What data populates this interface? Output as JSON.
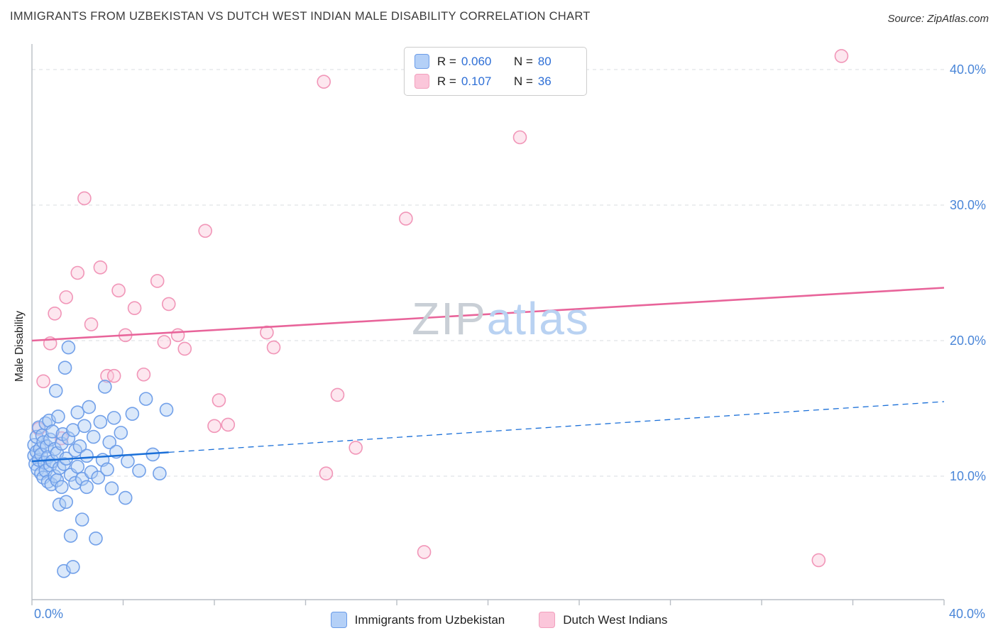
{
  "header": {
    "title": "IMMIGRANTS FROM UZBEKISTAN VS DUTCH WEST INDIAN MALE DISABILITY CORRELATION CHART",
    "source": "Source: ZipAtlas.com"
  },
  "watermark": {
    "zip": "ZIP",
    "atlas": "atlas"
  },
  "y_axis": {
    "label": "Male Disability",
    "ticks": [
      {
        "value": 10,
        "label": "10.0%"
      },
      {
        "value": 20,
        "label": "20.0%"
      },
      {
        "value": 30,
        "label": "30.0%"
      },
      {
        "value": 40,
        "label": "40.0%"
      }
    ]
  },
  "x_axis": {
    "min": 0,
    "max": 40,
    "min_label": "0.0%",
    "max_label": "40.0%"
  },
  "stats_legend": {
    "r_label": "R =",
    "n_label": "N =",
    "rows": [
      {
        "r": "0.060",
        "n": "80"
      },
      {
        "r": "0.107",
        "n": "36"
      }
    ]
  },
  "bottom_legend": {
    "items": [
      {
        "label": "Immigrants from Uzbekistan"
      },
      {
        "label": "Dutch West Indians"
      }
    ]
  },
  "chart_data": {
    "type": "scatter",
    "title": "IMMIGRANTS FROM UZBEKISTAN VS DUTCH WEST INDIAN MALE DISABILITY CORRELATION CHART",
    "xlabel": "",
    "ylabel": "Male Disability",
    "xlim": [
      0,
      40
    ],
    "ylim": [
      0,
      42
    ],
    "grid": true,
    "legend_position": "top-center",
    "series": [
      {
        "name": "Immigrants from Uzbekistan",
        "R": 0.06,
        "N": 80,
        "stroke": "#6b9ce8",
        "fill": "#aecbf5",
        "points": [
          [
            0.1,
            11.5
          ],
          [
            0.1,
            12.3
          ],
          [
            0.15,
            10.9
          ],
          [
            0.2,
            11.8
          ],
          [
            0.2,
            12.9
          ],
          [
            0.25,
            10.5
          ],
          [
            0.3,
            11.2
          ],
          [
            0.3,
            13.6
          ],
          [
            0.35,
            12.0
          ],
          [
            0.4,
            10.2
          ],
          [
            0.4,
            11.6
          ],
          [
            0.45,
            13.0
          ],
          [
            0.5,
            9.9
          ],
          [
            0.5,
            12.5
          ],
          [
            0.55,
            11.0
          ],
          [
            0.6,
            10.4
          ],
          [
            0.6,
            13.9
          ],
          [
            0.65,
            12.2
          ],
          [
            0.7,
            9.6
          ],
          [
            0.7,
            11.4
          ],
          [
            0.75,
            14.1
          ],
          [
            0.8,
            10.8
          ],
          [
            0.8,
            12.7
          ],
          [
            0.85,
            9.4
          ],
          [
            0.9,
            11.1
          ],
          [
            0.9,
            13.3
          ],
          [
            1.0,
            10.0
          ],
          [
            1.0,
            12.0
          ],
          [
            1.05,
            16.3
          ],
          [
            1.1,
            9.7
          ],
          [
            1.1,
            11.7
          ],
          [
            1.15,
            14.4
          ],
          [
            1.2,
            7.9
          ],
          [
            1.2,
            10.6
          ],
          [
            1.3,
            12.4
          ],
          [
            1.3,
            9.2
          ],
          [
            1.35,
            13.1
          ],
          [
            1.4,
            3.0
          ],
          [
            1.4,
            10.9
          ],
          [
            1.45,
            18.0
          ],
          [
            1.5,
            8.1
          ],
          [
            1.5,
            11.3
          ],
          [
            1.6,
            19.5
          ],
          [
            1.6,
            12.8
          ],
          [
            1.7,
            5.6
          ],
          [
            1.7,
            10.1
          ],
          [
            1.8,
            3.3
          ],
          [
            1.8,
            13.4
          ],
          [
            1.9,
            9.5
          ],
          [
            1.9,
            11.9
          ],
          [
            2.0,
            14.7
          ],
          [
            2.0,
            10.7
          ],
          [
            2.1,
            12.2
          ],
          [
            2.2,
            6.8
          ],
          [
            2.2,
            9.8
          ],
          [
            2.3,
            13.7
          ],
          [
            2.4,
            9.2
          ],
          [
            2.4,
            11.5
          ],
          [
            2.5,
            15.1
          ],
          [
            2.6,
            10.3
          ],
          [
            2.7,
            12.9
          ],
          [
            2.8,
            5.4
          ],
          [
            2.9,
            9.9
          ],
          [
            3.0,
            14.0
          ],
          [
            3.1,
            11.2
          ],
          [
            3.2,
            16.6
          ],
          [
            3.3,
            10.5
          ],
          [
            3.4,
            12.5
          ],
          [
            3.5,
            9.1
          ],
          [
            3.6,
            14.3
          ],
          [
            3.7,
            11.8
          ],
          [
            3.9,
            13.2
          ],
          [
            4.1,
            8.4
          ],
          [
            4.2,
            11.1
          ],
          [
            4.4,
            14.6
          ],
          [
            4.7,
            10.4
          ],
          [
            5.0,
            15.7
          ],
          [
            5.3,
            11.6
          ],
          [
            5.6,
            10.2
          ],
          [
            5.9,
            14.9
          ]
        ]
      },
      {
        "name": "Dutch West Indians",
        "R": 0.107,
        "N": 36,
        "stroke": "#f090b4",
        "fill": "#fbc9dc",
        "points": [
          [
            0.3,
            13.5
          ],
          [
            0.5,
            17.0
          ],
          [
            0.8,
            19.8
          ],
          [
            1.0,
            22.0
          ],
          [
            1.3,
            12.8
          ],
          [
            1.5,
            23.2
          ],
          [
            2.0,
            25.0
          ],
          [
            2.3,
            30.5
          ],
          [
            2.6,
            21.2
          ],
          [
            3.0,
            25.4
          ],
          [
            3.3,
            17.4
          ],
          [
            3.6,
            17.4
          ],
          [
            3.8,
            23.7
          ],
          [
            4.1,
            20.4
          ],
          [
            4.5,
            22.4
          ],
          [
            4.9,
            17.5
          ],
          [
            5.5,
            24.4
          ],
          [
            5.8,
            19.9
          ],
          [
            6.0,
            22.7
          ],
          [
            6.4,
            20.4
          ],
          [
            6.7,
            19.4
          ],
          [
            7.6,
            28.1
          ],
          [
            8.0,
            13.7
          ],
          [
            8.2,
            15.6
          ],
          [
            8.6,
            13.8
          ],
          [
            10.3,
            20.6
          ],
          [
            10.6,
            19.5
          ],
          [
            12.8,
            39.1
          ],
          [
            12.9,
            10.2
          ],
          [
            13.4,
            16.0
          ],
          [
            14.2,
            12.1
          ],
          [
            16.4,
            29.0
          ],
          [
            17.2,
            4.4
          ],
          [
            21.4,
            35.0
          ],
          [
            34.5,
            3.8
          ],
          [
            35.5,
            41.0
          ]
        ]
      }
    ],
    "trend_lines": [
      {
        "series": "Immigrants from Uzbekistan",
        "start": [
          0,
          11.1
        ],
        "end": [
          40,
          15.5
        ],
        "solid_until_x": 6,
        "color": "#1a6fd8"
      },
      {
        "series": "Dutch West Indians",
        "start": [
          0,
          20.0
        ],
        "end": [
          40,
          23.9
        ],
        "color": "#e8649a"
      }
    ]
  }
}
